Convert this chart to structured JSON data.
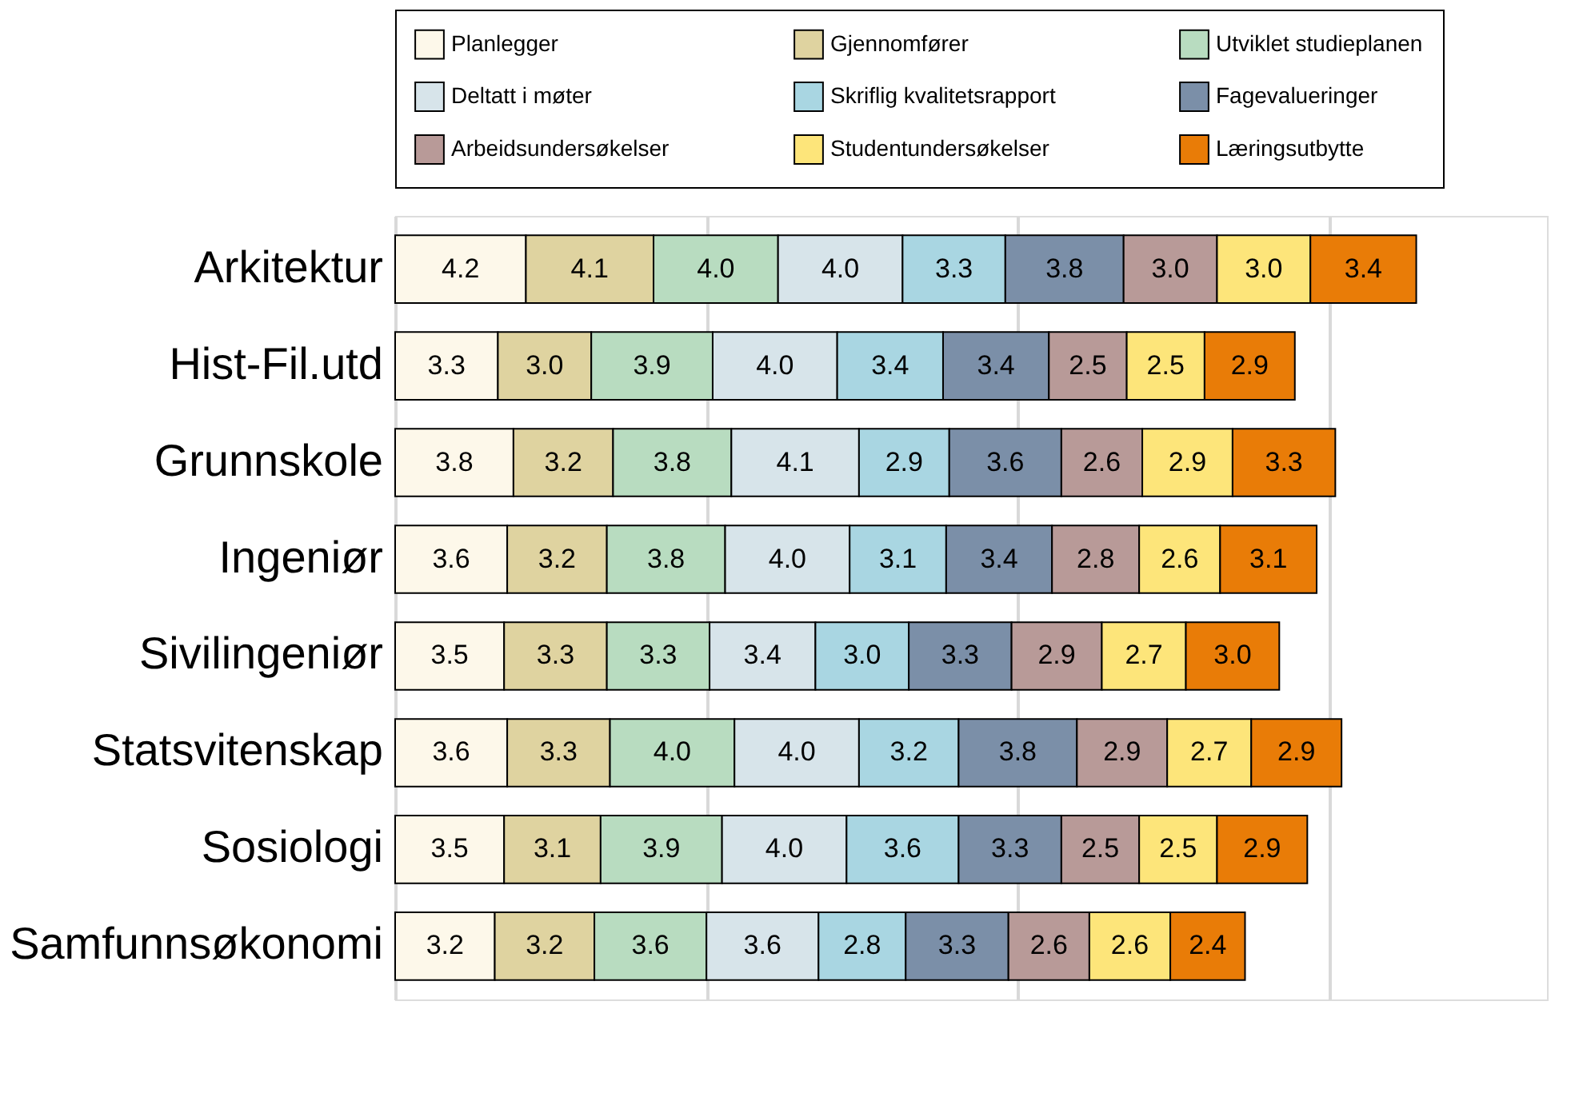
{
  "chart_data": {
    "type": "bar",
    "orientation": "horizontal",
    "stacked": true,
    "grid": "x",
    "legend": "top",
    "tick_labels": "y",
    "xlim": [
      0,
      37
    ],
    "xticks": [
      {
        "value": 0,
        "label": null
      },
      {
        "value": 10,
        "label": null
      },
      {
        "value": 20,
        "label": null
      },
      {
        "value": 30,
        "label": null
      }
    ],
    "categories": [
      "Arkitektur",
      "Hist-Fil.utd",
      "Grunnskole",
      "Ingeniør",
      "Sivilingeniør",
      "Statsvitenskap",
      "Sosiologi",
      "Samfunnsøkonomi"
    ],
    "series": [
      {
        "name": "Planlegger",
        "color": "#fdf8ea",
        "values": [
          4.2,
          3.3,
          3.8,
          3.6,
          3.5,
          3.6,
          3.5,
          3.2
        ],
        "value_labels": [
          "4.2",
          "3.3",
          "3.8",
          "3.6",
          "3.5",
          "3.6",
          "3.5",
          "3.2"
        ]
      },
      {
        "name": "Gjennomfører",
        "color": "#dfd3a0",
        "values": [
          4.1,
          3.0,
          3.2,
          3.2,
          3.3,
          3.3,
          3.1,
          3.2
        ],
        "value_labels": [
          "4.1",
          "3.0",
          "3.2",
          "3.2",
          "3.3",
          "3.3",
          "3.1",
          "3.2"
        ]
      },
      {
        "name": "Utviklet studieplanen",
        "color": "#b8dcc0",
        "values": [
          4.0,
          3.9,
          3.8,
          3.8,
          3.3,
          4.0,
          3.9,
          3.6
        ],
        "value_labels": [
          "4.0",
          "3.9",
          "3.8",
          "3.8",
          "3.3",
          "4.0",
          "3.9",
          "3.6"
        ]
      },
      {
        "name": "Deltatt i møter",
        "color": "#d7e4ea",
        "values": [
          4.0,
          4.0,
          4.1,
          4.0,
          3.4,
          4.0,
          4.0,
          3.6
        ],
        "value_labels": [
          "4.0",
          "4.0",
          "4.1",
          "4.0",
          "3.4",
          "4.0",
          "4.0",
          "3.6"
        ]
      },
      {
        "name": "Skriflig kvalitetsrapport",
        "color": "#a9d6e2",
        "values": [
          3.3,
          3.4,
          2.9,
          3.1,
          3.0,
          3.2,
          3.6,
          2.8
        ],
        "value_labels": [
          "3.3",
          "3.4",
          "2.9",
          "3.1",
          "3.0",
          "3.2",
          "3.6",
          "2.8"
        ]
      },
      {
        "name": "Fagevalueringer",
        "color": "#7b8fa8",
        "values": [
          3.8,
          3.4,
          3.6,
          3.4,
          3.3,
          3.8,
          3.3,
          3.3
        ],
        "value_labels": [
          "3.8",
          "3.4",
          "3.6",
          "3.4",
          "3.3",
          "3.8",
          "3.3",
          "3.3"
        ]
      },
      {
        "name": "Arbeidsundersøkelser",
        "color": "#b89a98",
        "values": [
          3.0,
          2.5,
          2.6,
          2.8,
          2.9,
          2.9,
          2.5,
          2.6
        ],
        "value_labels": [
          "3.0",
          "2.5",
          "2.6",
          "2.8",
          "2.9",
          "2.9",
          "2.5",
          "2.6"
        ]
      },
      {
        "name": "Studentundersøkelser",
        "color": "#fde57a",
        "values": [
          3.0,
          2.5,
          2.9,
          2.6,
          2.7,
          2.7,
          2.5,
          2.6
        ],
        "value_labels": [
          "3.0",
          "2.5",
          "2.9",
          "2.6",
          "2.7",
          "2.7",
          "2.5",
          "2.6"
        ]
      },
      {
        "name": "Læringsutbytte",
        "color": "#e97c07",
        "values": [
          3.4,
          2.9,
          3.3,
          3.1,
          3.0,
          2.9,
          2.9,
          2.4
        ],
        "value_labels": [
          "3.4",
          "2.9",
          "3.3",
          "3.1",
          "3.0",
          "2.9",
          "2.9",
          "2.4"
        ]
      }
    ]
  }
}
